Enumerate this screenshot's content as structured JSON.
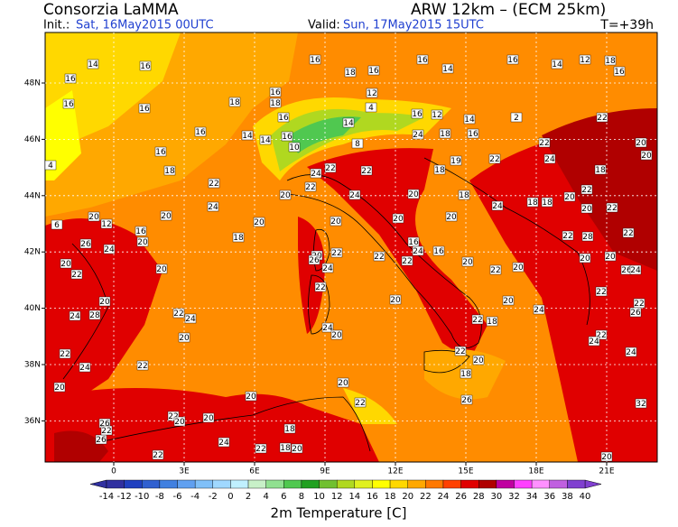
{
  "header": {
    "title": "Consorzia LaMMA",
    "model": "ARW 12km – (ECM 25km)",
    "init_label": "Init.:",
    "init": "Sat, 16May2015 00UTC",
    "valid_label": "Valid:",
    "valid": "Sun, 17May2015 15UTC",
    "lead": "T=+39h"
  },
  "map": {
    "lonticks": [
      0,
      {
        "value": 3,
        "label": "3E"
      },
      {
        "value": 6,
        "label": "6E"
      },
      {
        "value": 9,
        "label": "9E"
      },
      {
        "value": 12,
        "label": "12E"
      },
      {
        "value": 15,
        "label": "15E"
      },
      {
        "value": 18,
        "label": "18E"
      },
      {
        "value": 21,
        "label": "21E"
      }
    ],
    "latticks": [
      {
        "value": 48,
        "label": "48N"
      },
      {
        "value": 46,
        "label": "46N"
      },
      {
        "value": 44,
        "label": "44N"
      },
      {
        "value": 42,
        "label": "42N"
      },
      {
        "value": 40,
        "label": "40N"
      },
      {
        "value": 38,
        "label": "38N"
      },
      {
        "value": 36,
        "label": "36N"
      }
    ],
    "temperature_labels": [
      14,
      16,
      16,
      16,
      16,
      16,
      18,
      16,
      16,
      14,
      16,
      14,
      12,
      18,
      16,
      16,
      18,
      18,
      12,
      4,
      14,
      16,
      12,
      14,
      2,
      22,
      16,
      16,
      14,
      14,
      16,
      16,
      10,
      8,
      24,
      18,
      16,
      22,
      20,
      20,
      4,
      18,
      24,
      22,
      22,
      18,
      19,
      22,
      24,
      18,
      22,
      20,
      22,
      24,
      20,
      18,
      18,
      18,
      20,
      22,
      20,
      22,
      20,
      24,
      20,
      20,
      20,
      20,
      24,
      20,
      12,
      6,
      16,
      20,
      24,
      26,
      18,
      20,
      22,
      16,
      24,
      16,
      22,
      20,
      22,
      20,
      22,
      28,
      22,
      20,
      26,
      24,
      20,
      22,
      20,
      26,
      24,
      22,
      20,
      22,
      22,
      26,
      20,
      24,
      28,
      22,
      24,
      22,
      20,
      20,
      24,
      22,
      18,
      24,
      20,
      20,
      22,
      24,
      24,
      22,
      24,
      20,
      22,
      22,
      20,
      18,
      20,
      22,
      26,
      32,
      20,
      22,
      20,
      20,
      26,
      26,
      22,
      18,
      24,
      22,
      18,
      20,
      22,
      20
    ]
  },
  "colorbar": {
    "title": "2m Temperature [C]",
    "levels": [
      -14,
      -12,
      -10,
      -8,
      -6,
      -4,
      -2,
      0,
      2,
      4,
      6,
      8,
      10,
      12,
      14,
      16,
      18,
      20,
      22,
      24,
      26,
      28,
      30,
      32,
      34,
      36,
      38,
      40
    ],
    "colors": [
      "#3030a0",
      "#2040c0",
      "#3060d0",
      "#4080e0",
      "#60a0f0",
      "#80c0f8",
      "#a0d8ff",
      "#c0f0ff",
      "#c8f0c8",
      "#90e090",
      "#50c850",
      "#20a020",
      "#70c030",
      "#b0d820",
      "#e0f020",
      "#ffff00",
      "#ffd800",
      "#ffa800",
      "#ff7800",
      "#ff4000",
      "#e00000",
      "#b00000",
      "#c000a0",
      "#ff40ff",
      "#ff90ff",
      "#c060e0",
      "#8040d0"
    ]
  }
}
